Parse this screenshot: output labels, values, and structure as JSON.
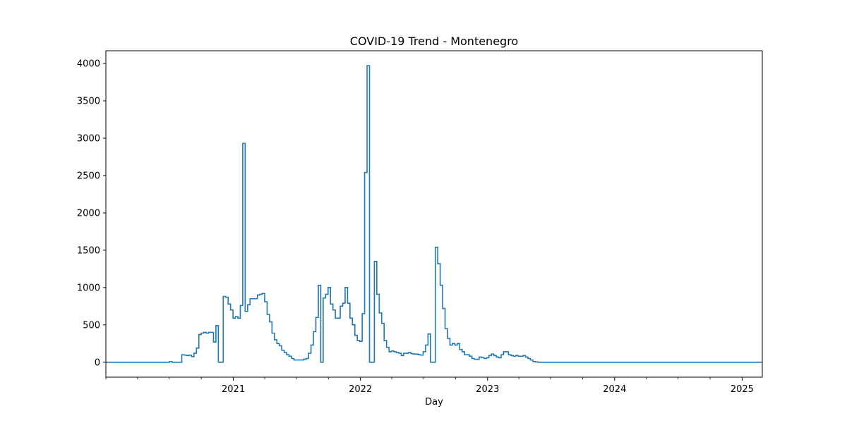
{
  "chart_data": {
    "type": "line",
    "title": "COVID-19 Trend - Montenegro",
    "xlabel": "Day",
    "ylabel": "",
    "x_axis_type": "date",
    "xlim": [
      "2020-01-01",
      "2025-02-28"
    ],
    "ylim": [
      -200,
      4170
    ],
    "grid": false,
    "legend": "none",
    "line_color": "#1f77b4",
    "x_major_ticks": [
      {
        "date": "2021-01-01",
        "label": "2021"
      },
      {
        "date": "2022-01-01",
        "label": "2022"
      },
      {
        "date": "2023-01-01",
        "label": "2023"
      },
      {
        "date": "2024-01-01",
        "label": "2024"
      },
      {
        "date": "2025-01-01",
        "label": "2025"
      }
    ],
    "y_ticks": [
      {
        "value": 0,
        "label": "0"
      },
      {
        "value": 500,
        "label": "500"
      },
      {
        "value": 1000,
        "label": "1000"
      },
      {
        "value": 1500,
        "label": "1500"
      },
      {
        "value": 2000,
        "label": "2000"
      },
      {
        "value": 2500,
        "label": "2500"
      },
      {
        "value": 3000,
        "label": "3000"
      },
      {
        "value": 3500,
        "label": "3500"
      },
      {
        "value": 4000,
        "label": "4000"
      }
    ],
    "series": [
      {
        "points": [
          [
            "2020-01-01",
            0
          ],
          [
            "2020-06-25",
            0
          ],
          [
            "2020-07-02",
            10
          ],
          [
            "2020-07-09",
            0
          ],
          [
            "2020-07-30",
            0
          ],
          [
            "2020-08-06",
            100
          ],
          [
            "2020-08-13",
            95
          ],
          [
            "2020-08-20",
            90
          ],
          [
            "2020-08-27",
            95
          ],
          [
            "2020-09-03",
            75
          ],
          [
            "2020-09-10",
            120
          ],
          [
            "2020-09-17",
            190
          ],
          [
            "2020-09-24",
            370
          ],
          [
            "2020-10-01",
            390
          ],
          [
            "2020-10-08",
            400
          ],
          [
            "2020-10-15",
            390
          ],
          [
            "2020-10-22",
            400
          ],
          [
            "2020-10-29",
            400
          ],
          [
            "2020-11-05",
            270
          ],
          [
            "2020-11-12",
            490
          ],
          [
            "2020-11-19",
            0
          ],
          [
            "2020-11-26",
            0
          ],
          [
            "2020-12-03",
            880
          ],
          [
            "2020-12-10",
            870
          ],
          [
            "2020-12-17",
            780
          ],
          [
            "2020-12-24",
            700
          ],
          [
            "2020-12-31",
            590
          ],
          [
            "2021-01-07",
            610
          ],
          [
            "2021-01-14",
            590
          ],
          [
            "2021-01-21",
            760
          ],
          [
            "2021-01-28",
            2930
          ],
          [
            "2021-02-04",
            680
          ],
          [
            "2021-02-11",
            770
          ],
          [
            "2021-02-18",
            850
          ],
          [
            "2021-02-25",
            850
          ],
          [
            "2021-03-04",
            850
          ],
          [
            "2021-03-11",
            900
          ],
          [
            "2021-03-18",
            910
          ],
          [
            "2021-03-25",
            920
          ],
          [
            "2021-04-01",
            810
          ],
          [
            "2021-04-08",
            640
          ],
          [
            "2021-04-15",
            540
          ],
          [
            "2021-04-22",
            390
          ],
          [
            "2021-04-29",
            300
          ],
          [
            "2021-05-06",
            250
          ],
          [
            "2021-05-13",
            220
          ],
          [
            "2021-05-20",
            160
          ],
          [
            "2021-05-27",
            130
          ],
          [
            "2021-06-03",
            100
          ],
          [
            "2021-06-10",
            80
          ],
          [
            "2021-06-17",
            50
          ],
          [
            "2021-06-24",
            30
          ],
          [
            "2021-07-01",
            30
          ],
          [
            "2021-07-08",
            30
          ],
          [
            "2021-07-15",
            30
          ],
          [
            "2021-07-22",
            40
          ],
          [
            "2021-07-29",
            50
          ],
          [
            "2021-08-05",
            120
          ],
          [
            "2021-08-12",
            230
          ],
          [
            "2021-08-19",
            410
          ],
          [
            "2021-08-26",
            600
          ],
          [
            "2021-09-02",
            1030
          ],
          [
            "2021-09-09",
            0
          ],
          [
            "2021-09-16",
            860
          ],
          [
            "2021-09-23",
            910
          ],
          [
            "2021-09-30",
            1000
          ],
          [
            "2021-10-07",
            780
          ],
          [
            "2021-10-14",
            700
          ],
          [
            "2021-10-21",
            590
          ],
          [
            "2021-10-28",
            590
          ],
          [
            "2021-11-04",
            750
          ],
          [
            "2021-11-11",
            790
          ],
          [
            "2021-11-18",
            1000
          ],
          [
            "2021-11-25",
            790
          ],
          [
            "2021-12-02",
            590
          ],
          [
            "2021-12-09",
            500
          ],
          [
            "2021-12-16",
            360
          ],
          [
            "2021-12-23",
            290
          ],
          [
            "2021-12-30",
            280
          ],
          [
            "2022-01-06",
            650
          ],
          [
            "2022-01-13",
            2540
          ],
          [
            "2022-01-20",
            3970
          ],
          [
            "2022-01-27",
            0
          ],
          [
            "2022-02-03",
            0
          ],
          [
            "2022-02-10",
            1350
          ],
          [
            "2022-02-17",
            910
          ],
          [
            "2022-02-24",
            660
          ],
          [
            "2022-03-03",
            520
          ],
          [
            "2022-03-10",
            290
          ],
          [
            "2022-03-17",
            200
          ],
          [
            "2022-03-24",
            140
          ],
          [
            "2022-03-31",
            150
          ],
          [
            "2022-04-07",
            140
          ],
          [
            "2022-04-14",
            130
          ],
          [
            "2022-04-21",
            120
          ],
          [
            "2022-04-28",
            90
          ],
          [
            "2022-05-05",
            120
          ],
          [
            "2022-05-12",
            120
          ],
          [
            "2022-05-19",
            130
          ],
          [
            "2022-05-26",
            115
          ],
          [
            "2022-06-02",
            110
          ],
          [
            "2022-06-09",
            110
          ],
          [
            "2022-06-16",
            100
          ],
          [
            "2022-06-23",
            95
          ],
          [
            "2022-06-30",
            140
          ],
          [
            "2022-07-07",
            230
          ],
          [
            "2022-07-14",
            380
          ],
          [
            "2022-07-21",
            0
          ],
          [
            "2022-07-28",
            0
          ],
          [
            "2022-08-04",
            1540
          ],
          [
            "2022-08-11",
            1320
          ],
          [
            "2022-08-18",
            1030
          ],
          [
            "2022-08-25",
            720
          ],
          [
            "2022-09-01",
            450
          ],
          [
            "2022-09-08",
            320
          ],
          [
            "2022-09-15",
            230
          ],
          [
            "2022-09-22",
            250
          ],
          [
            "2022-09-29",
            230
          ],
          [
            "2022-10-06",
            250
          ],
          [
            "2022-10-13",
            170
          ],
          [
            "2022-10-20",
            140
          ],
          [
            "2022-10-27",
            100
          ],
          [
            "2022-11-03",
            100
          ],
          [
            "2022-11-10",
            80
          ],
          [
            "2022-11-17",
            50
          ],
          [
            "2022-11-24",
            40
          ],
          [
            "2022-12-01",
            40
          ],
          [
            "2022-12-08",
            70
          ],
          [
            "2022-12-15",
            60
          ],
          [
            "2022-12-22",
            50
          ],
          [
            "2022-12-29",
            60
          ],
          [
            "2023-01-05",
            90
          ],
          [
            "2023-01-12",
            110
          ],
          [
            "2023-01-19",
            90
          ],
          [
            "2023-01-26",
            70
          ],
          [
            "2023-02-02",
            60
          ],
          [
            "2023-02-09",
            100
          ],
          [
            "2023-02-16",
            140
          ],
          [
            "2023-02-23",
            140
          ],
          [
            "2023-03-02",
            100
          ],
          [
            "2023-03-09",
            90
          ],
          [
            "2023-03-16",
            80
          ],
          [
            "2023-03-23",
            90
          ],
          [
            "2023-03-30",
            80
          ],
          [
            "2023-04-06",
            80
          ],
          [
            "2023-04-13",
            90
          ],
          [
            "2023-04-20",
            70
          ],
          [
            "2023-04-27",
            50
          ],
          [
            "2023-05-04",
            30
          ],
          [
            "2023-05-11",
            10
          ],
          [
            "2023-05-18",
            5
          ],
          [
            "2023-05-25",
            0
          ],
          [
            "2025-02-28",
            0
          ]
        ]
      }
    ]
  }
}
